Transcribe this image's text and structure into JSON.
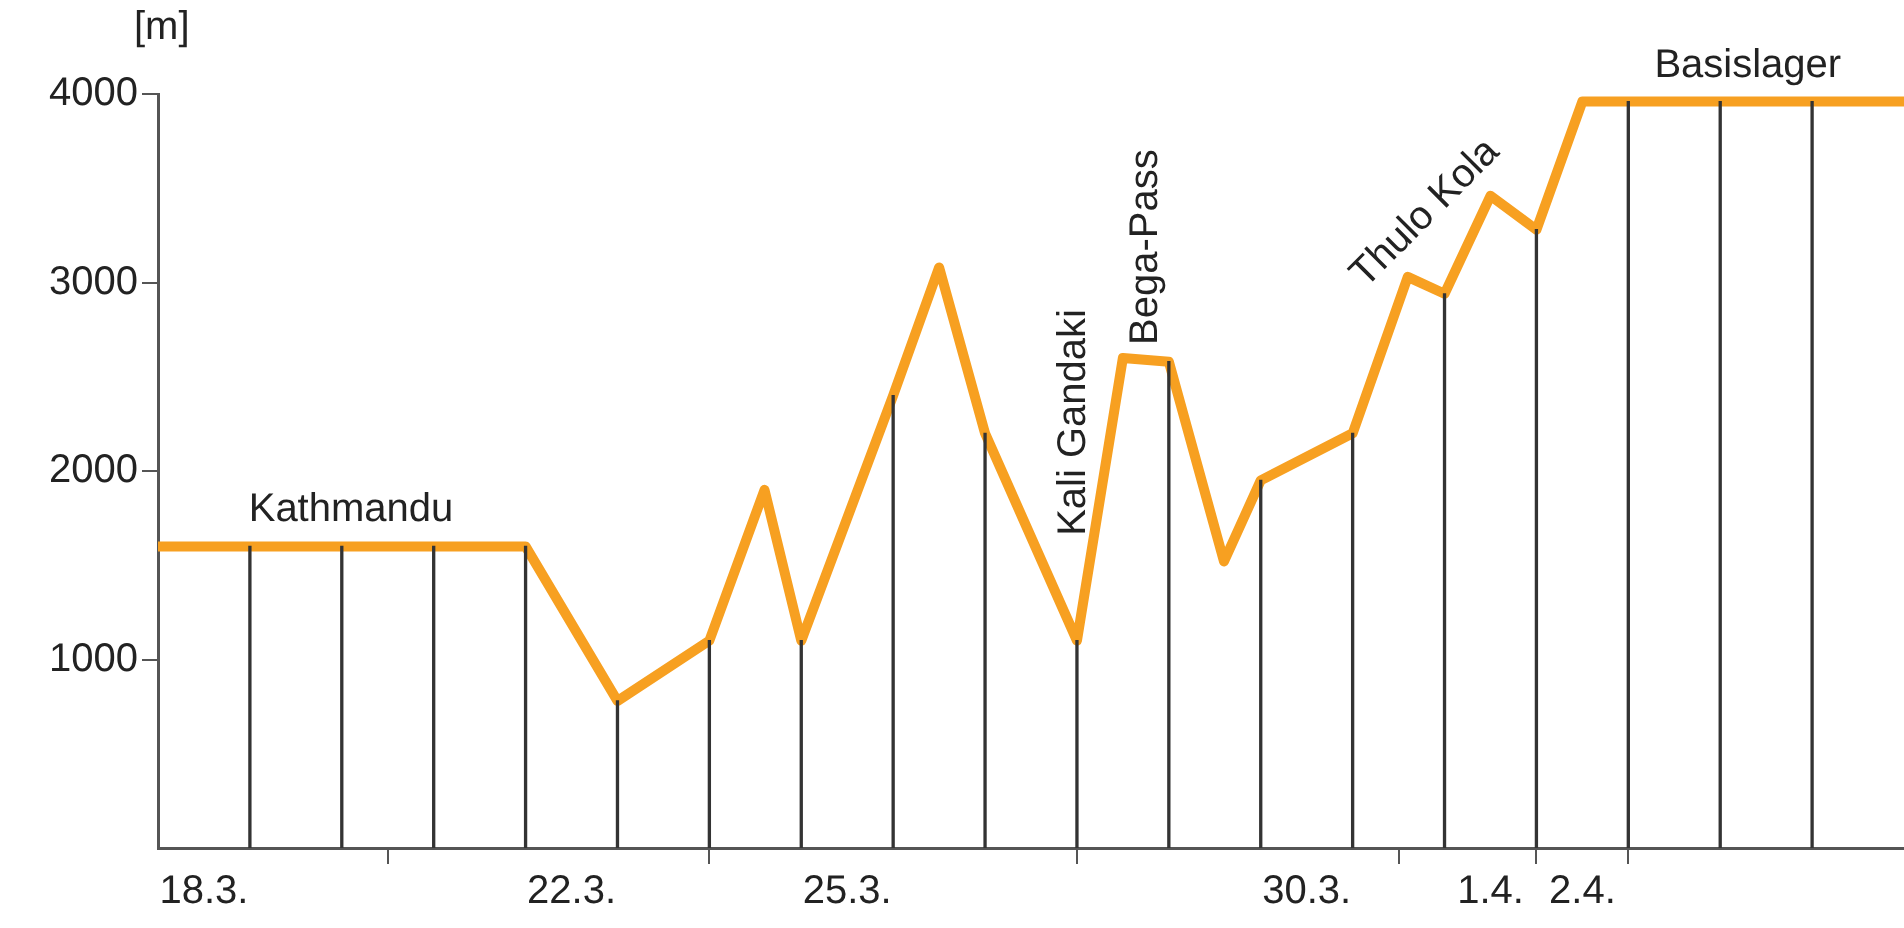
{
  "chart_data": {
    "type": "line",
    "ylabel": "[m]",
    "xlim": [
      "--03-17T12:00",
      "--04-05T12:00"
    ],
    "ylim": [
      0,
      4000
    ],
    "xticks": [
      {
        "value": "--03-18",
        "label": "18.3."
      },
      {
        "value": "--03-22",
        "label": "22.3."
      },
      {
        "value": "--03-25",
        "label": "25.3."
      },
      {
        "value": "--03-30",
        "label": "30.3."
      },
      {
        "value": "--04-01",
        "label": "1.4."
      },
      {
        "value": "--04-02",
        "label": "2.4."
      }
    ],
    "yticks": [
      1000,
      2000,
      3000,
      4000
    ],
    "grid": false,
    "legend": false,
    "marker": "none",
    "line_style": "solid",
    "series": [
      {
        "color": "#f7a021",
        "x": [
          "--03-17T12:00",
          "--03-21T12:00",
          "--03-22T12:00",
          "--03-23T12:00",
          "--03-24T02:24",
          "--03-24T12:00",
          "--03-25T12:00",
          "--03-26",
          "--03-26T12:00",
          "--03-27T12:00",
          "--03-28",
          "--03-28T12:00",
          "--03-29T02:24",
          "--03-29T12:00",
          "--03-30T12:00",
          "--03-31T02:24",
          "--03-31T12:00",
          "--04-01",
          "--04-01T12:00",
          "--04-02",
          "--04-05T12:00"
        ],
        "values": [
          1600,
          1600,
          780,
          1100,
          1900,
          1100,
          2400,
          3080,
          2200,
          1100,
          2600,
          2580,
          1520,
          1950,
          2200,
          3030,
          2940,
          3460,
          3280,
          3960,
          3960
        ]
      },
      {
        "type": "bar",
        "color": "#333333",
        "x": [
          "--03-18T12:00",
          "--03-19T12:00",
          "--03-20T12:00",
          "--03-21T12:00",
          "--03-22T12:00",
          "--03-23T12:00",
          "--03-24T12:00",
          "--03-25T12:00",
          "--03-26T12:00",
          "--03-27T12:00",
          "--03-28T12:00",
          "--03-29T12:00",
          "--03-30T12:00",
          "--03-31T12:00",
          "--04-01T12:00",
          "--04-02T12:00",
          "--04-03T12:00",
          "--04-04T12:00"
        ],
        "values": [
          1600,
          1600,
          1600,
          1600,
          780,
          1100,
          1100,
          2400,
          2200,
          1100,
          2580,
          1950,
          2200,
          2940,
          3280,
          3960,
          3960,
          3960
        ]
      }
    ],
    "annotations": [
      {
        "text": "Kathmandu",
        "x": "--03-19T14:24",
        "y": 1600
      },
      "Kali Gandaki",
      {
        "text": "Bega-Pass",
        "x": "--03-28T09:36",
        "y": 2584
      },
      {
        "text": "Thulo Kola",
        "x": "--03-31T02:24",
        "y": 3030
      },
      {
        "text": "Basislager",
        "x": "--04-03T19:12",
        "y": 3960
      }
    ]
  }
}
